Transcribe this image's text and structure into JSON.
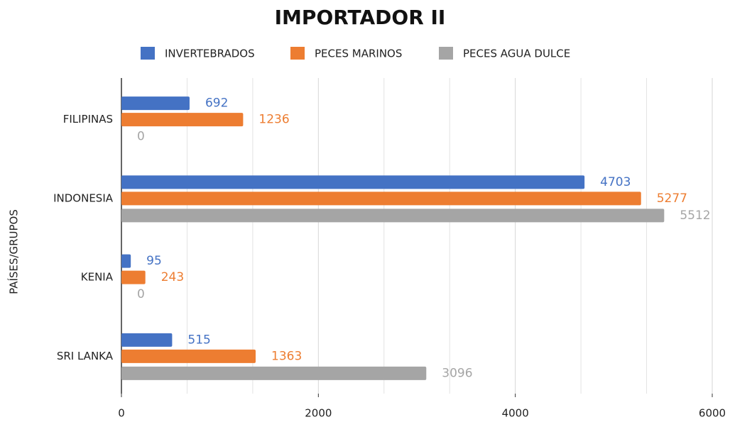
{
  "chart_data": {
    "type": "hbar",
    "title": "IMPORTADOR II",
    "y_label": "PAÍSES/GRUPOS",
    "categories": [
      "FILIPINAS",
      "INDONESIA",
      "KENIA",
      "SRI LANKA"
    ],
    "series": [
      {
        "name": "INVERTEBRADOS",
        "color": "#4472c4",
        "values": [
          692,
          4703,
          95,
          515
        ]
      },
      {
        "name": "PECES MARINOS",
        "color": "#ed7d31",
        "values": [
          1236,
          5277,
          243,
          1363
        ]
      },
      {
        "name": "PECES AGUA DULCE",
        "color": "#a5a5a5",
        "values": [
          0,
          5512,
          0,
          3096
        ]
      }
    ],
    "xlim": [
      0,
      6000
    ],
    "xticks": [
      0,
      2000,
      4000,
      6000
    ],
    "minor_divisions": 3,
    "grid": true,
    "legend": "top"
  }
}
